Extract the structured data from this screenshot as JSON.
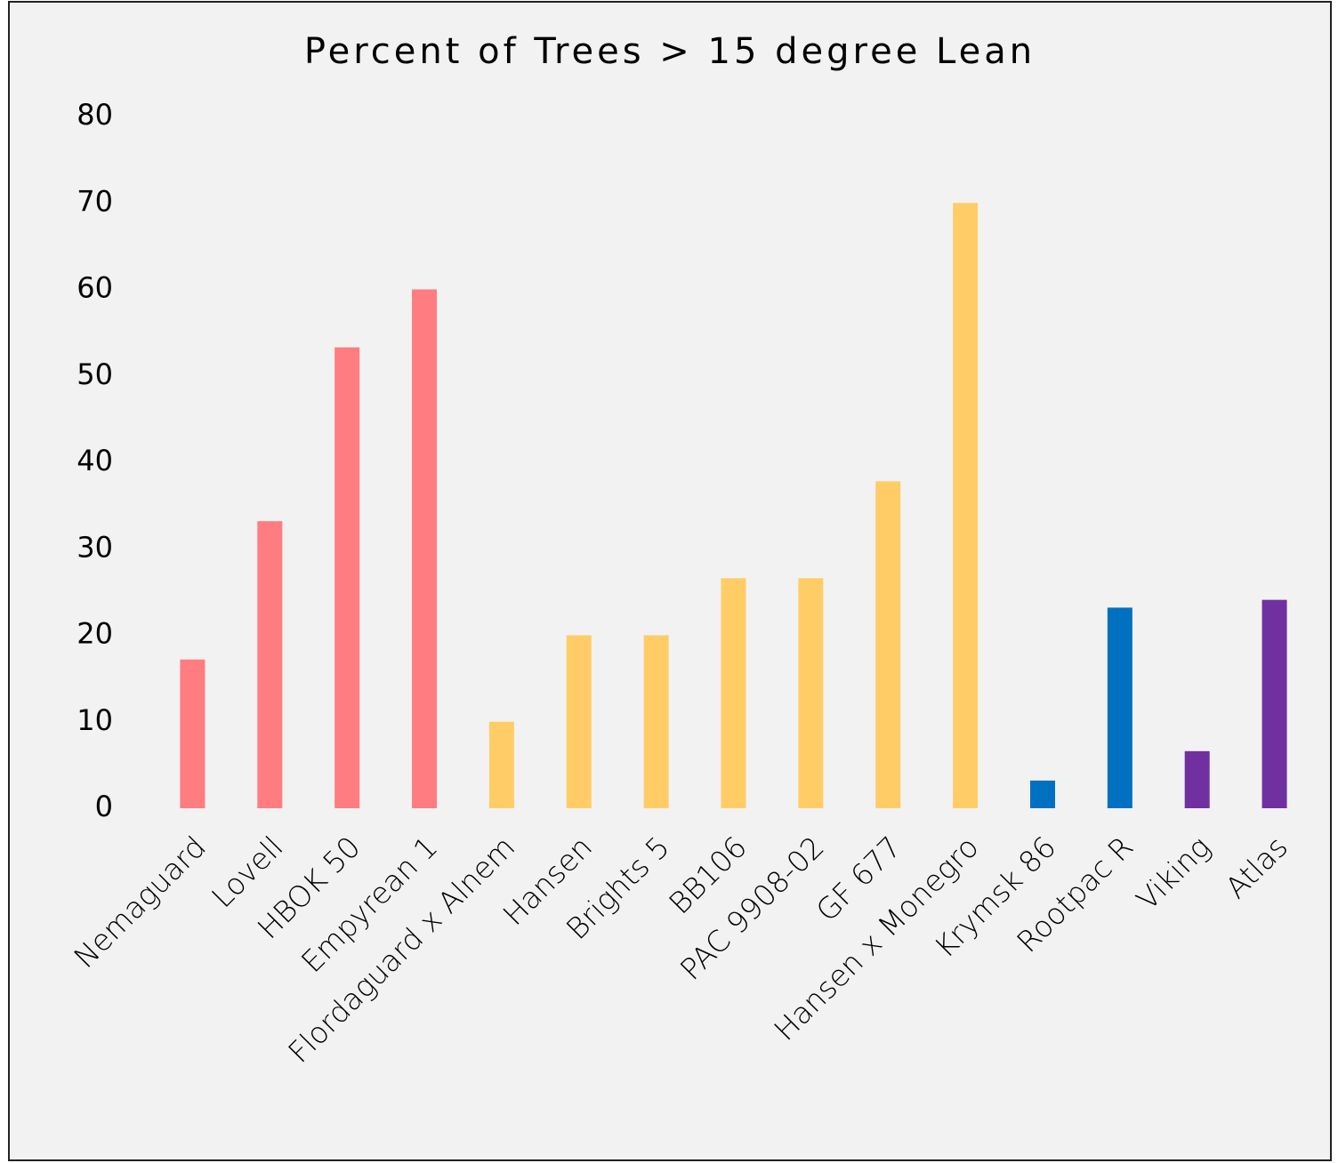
{
  "chart_data": {
    "type": "bar",
    "title": "Percent of Trees > 15 degree Lean",
    "categories": [
      "Nemaguard",
      "Lovell",
      "HBOK 50",
      "Empyrean 1",
      "Flordaguard x Alnem",
      "Hansen",
      "Brights 5",
      "BB106",
      "PAC 9908-02",
      "GF 677",
      "Hansen x Monegro",
      "Krymsk 86",
      "Rootpac R",
      "Viking",
      "Atlas"
    ],
    "values": [
      17.2,
      33.2,
      53.3,
      60,
      10,
      20,
      20,
      26.6,
      26.6,
      37.8,
      70,
      3.2,
      23.2,
      6.6,
      24.1
    ],
    "colors": [
      "#ff7c80",
      "#ff7c80",
      "#ff7c80",
      "#ff7c80",
      "#ffcc66",
      "#ffcc66",
      "#ffcc66",
      "#ffcc66",
      "#ffcc66",
      "#ffcc66",
      "#ffcc66",
      "#0070c0",
      "#0070c0",
      "#7030a0",
      "#7030a0"
    ],
    "ylim": [
      0,
      80
    ],
    "yticks": [
      0,
      10,
      20,
      30,
      40,
      50,
      60,
      70,
      80
    ],
    "grid": false
  }
}
